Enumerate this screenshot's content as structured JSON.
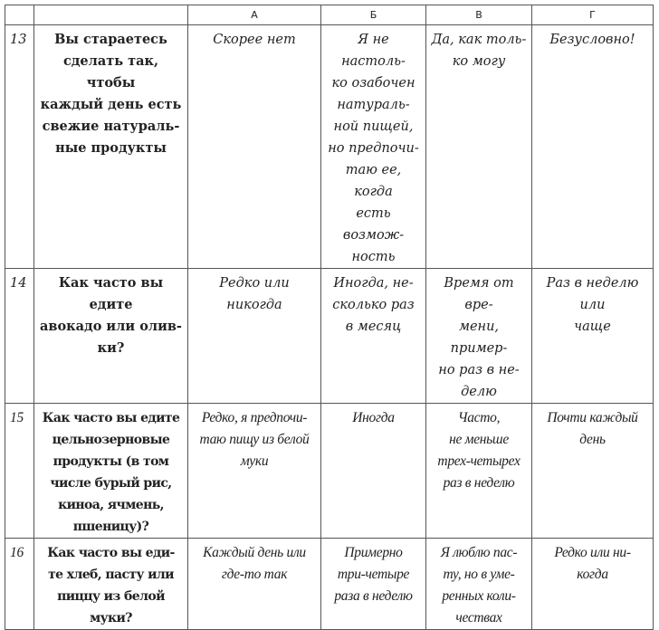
{
  "header": {
    "columns": [
      "",
      "",
      "А",
      "Б",
      "В",
      "Г"
    ]
  },
  "rows": [
    {
      "num": "13",
      "question": "Вы стараетесь\nсделать так, чтобы\nкаждый день есть\nсвежие натураль-\nные продукты",
      "answers": [
        "Скорее нет",
        "Я не настоль-\nко озабочен\nнатураль-\nной пищей,\nно предпочи-\nтаю ее, когда\nесть возмож-\nность",
        "Да, как толь-\nко могу",
        "Безусловно!"
      ]
    },
    {
      "num": "14",
      "question": "Как часто вы едите\nавокадо или олив-\nки?",
      "answers": [
        "Редко или никогда",
        "Иногда, не-\nсколько раз\nв месяц",
        "Время от вре-\nмени, пример-\nно раз в не-\nделю",
        "Раз в неделю или\nчаще"
      ]
    },
    {
      "num": "15",
      "question": "Как часто вы едите\nцельнозерновые\nпродукты (в том\nчисле бурый рис,\nкиноа, ячмень,\nпшеницу)?",
      "answers": [
        "Редко, я предпочи-\nтаю пищу из белой\nмуки",
        "Иногда",
        "Часто,\nне меньше\nтрех-четырех\nраз в неделю",
        "Почти каждый\nдень"
      ]
    },
    {
      "num": "16",
      "question": "Как часто вы еди-\nте хлеб, пасту или\nпиццу из белой\nмуки?",
      "answers": [
        "Каждый день или\nгде-то так",
        "Примерно\nтри-четыре\nраза в неделю",
        "Я люблю пас-\nту, но в уме-\nренных коли-\nчествах",
        "Редко или ни-\nкогда"
      ]
    }
  ]
}
